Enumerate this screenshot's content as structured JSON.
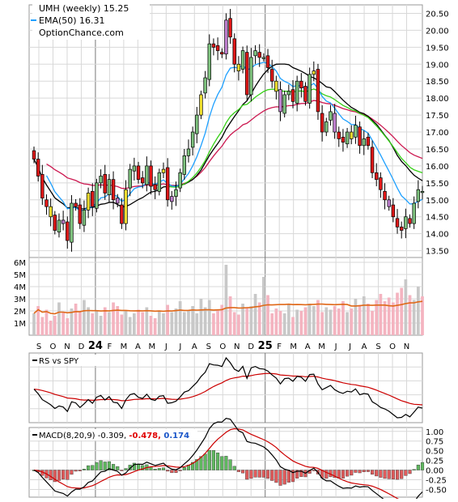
{
  "legend": {
    "title_line": "UMH (weekly) 15.25",
    "ema_line": "EMA(50) 16.31",
    "source": "OptionChance.com"
  },
  "colors": {
    "up_candle": "#7ec27e",
    "down_candle": "#e01818",
    "purple_candle": "#c080d0",
    "yellow_candle": "#f0e030",
    "ema_short": "#1ea0ff",
    "ema_green": "#36d016",
    "ema_red": "#cc1850",
    "black_line": "#000000",
    "volume_down": "#f4b4c0",
    "volume_up": "#c8c8c8",
    "volume_avg": "#e06818",
    "macd_hist_pos": "#5fb85f",
    "macd_hist_neg": "#e05c5c",
    "macd_signal": "#cc0000"
  },
  "chart_data": [
    {
      "type": "candlestick",
      "series": "UMH weekly",
      "y_ticks": [
        "13.50",
        "14.00",
        "14.50",
        "15.00",
        "15.50",
        "16.00",
        "16.50",
        "17.00",
        "17.50",
        "18.00",
        "18.50",
        "19.00",
        "19.50",
        "20.00",
        "20.50"
      ],
      "ylim": [
        13.3,
        20.75
      ],
      "x_month_labels": [
        "S",
        "O",
        "N",
        "D",
        "24",
        "F",
        "M",
        "A",
        "M",
        "J",
        "J",
        "A",
        "S",
        "O",
        "N",
        "D",
        "25",
        "F",
        "M",
        "A",
        "M",
        "J",
        "J",
        "A",
        "S",
        "O",
        "N"
      ],
      "close": [
        16.2,
        15.7,
        15.05,
        14.8,
        14.5,
        14.1,
        14.4,
        14.3,
        13.8,
        14.9,
        14.8,
        14.3,
        14.7,
        15.2,
        14.8,
        15.5,
        15.7,
        15.2,
        15.6,
        15.0,
        14.9,
        14.3,
        15.3,
        15.9,
        16.0,
        15.6,
        15.5,
        16.0,
        15.4,
        15.3,
        15.8,
        15.9,
        15.0,
        15.1,
        15.3,
        15.8,
        16.3,
        16.5,
        17.0,
        17.5,
        18.1,
        18.6,
        19.6,
        19.5,
        19.4,
        19.3,
        20.3,
        19.8,
        19.0,
        18.8,
        19.4,
        18.1,
        19.2,
        19.4,
        19.2,
        19.2,
        18.9,
        18.5,
        18.2,
        17.6,
        18.1,
        18.2,
        17.9,
        18.5,
        18.3,
        17.9,
        18.7,
        18.8,
        17.6,
        17.0,
        17.3,
        17.6,
        17.0,
        16.8,
        16.7,
        17.0,
        16.8,
        17.2,
        16.6,
        16.8,
        16.6,
        15.8,
        15.6,
        15.3,
        15.0,
        14.8,
        14.5,
        14.2,
        14.1,
        14.5,
        14.3,
        14.9,
        15.3,
        15.25
      ],
      "last_close": 15.25,
      "ema50_label": 16.31
    },
    {
      "type": "bar",
      "series": "Volume",
      "y_ticks": [
        "1M",
        "2M",
        "3M",
        "4M",
        "5M",
        "6M"
      ],
      "ylim": [
        0,
        6
      ],
      "values": [
        1.8,
        2.4,
        1.5,
        2.1,
        1.2,
        1.6,
        2.7,
        1.9,
        1.4,
        2.2,
        2.6,
        1.9,
        2.9,
        2.3,
        1.8,
        2.0,
        1.6,
        2.3,
        1.9,
        2.7,
        2.4,
        1.7,
        2.0,
        1.5,
        1.8,
        2.1,
        1.9,
        2.3,
        1.6,
        1.4,
        2.0,
        1.8,
        2.5,
        1.9,
        2.2,
        2.8,
        1.9,
        2.0,
        2.4,
        1.8,
        3.0,
        2.3,
        2.9,
        1.8,
        2.1,
        2.5,
        5.8,
        3.2,
        1.9,
        1.7,
        2.6,
        2.3,
        2.4,
        3.4,
        2.7,
        4.8,
        3.3,
        1.8,
        2.2,
        2.0,
        1.8,
        2.6,
        1.5,
        2.1,
        2.0,
        2.3,
        2.6,
        2.4,
        2.9,
        1.9,
        2.3,
        2.1,
        2.4,
        2.2,
        2.8,
        1.9,
        2.2,
        3.0,
        2.5,
        3.2,
        2.6,
        2.0,
        2.9,
        3.4,
        2.8,
        3.1,
        2.7,
        3.5,
        3.9,
        4.6,
        3.3,
        2.9,
        4.0,
        3.2
      ]
    },
    {
      "type": "line",
      "series": "RS vs SPY",
      "label": "RS vs SPY"
    },
    {
      "type": "line+bar",
      "series": "MACD(8,20,9)",
      "label": "MACD(8,20,9) -0.309,",
      "value_signal": "-0.478,",
      "value_hist": "0.174",
      "y_ticks": [
        "1.00",
        "0.75",
        "0.50",
        "0.25",
        "0.00",
        "-0.25",
        "-0.50"
      ],
      "ylim": [
        -0.7,
        1.1
      ]
    }
  ]
}
